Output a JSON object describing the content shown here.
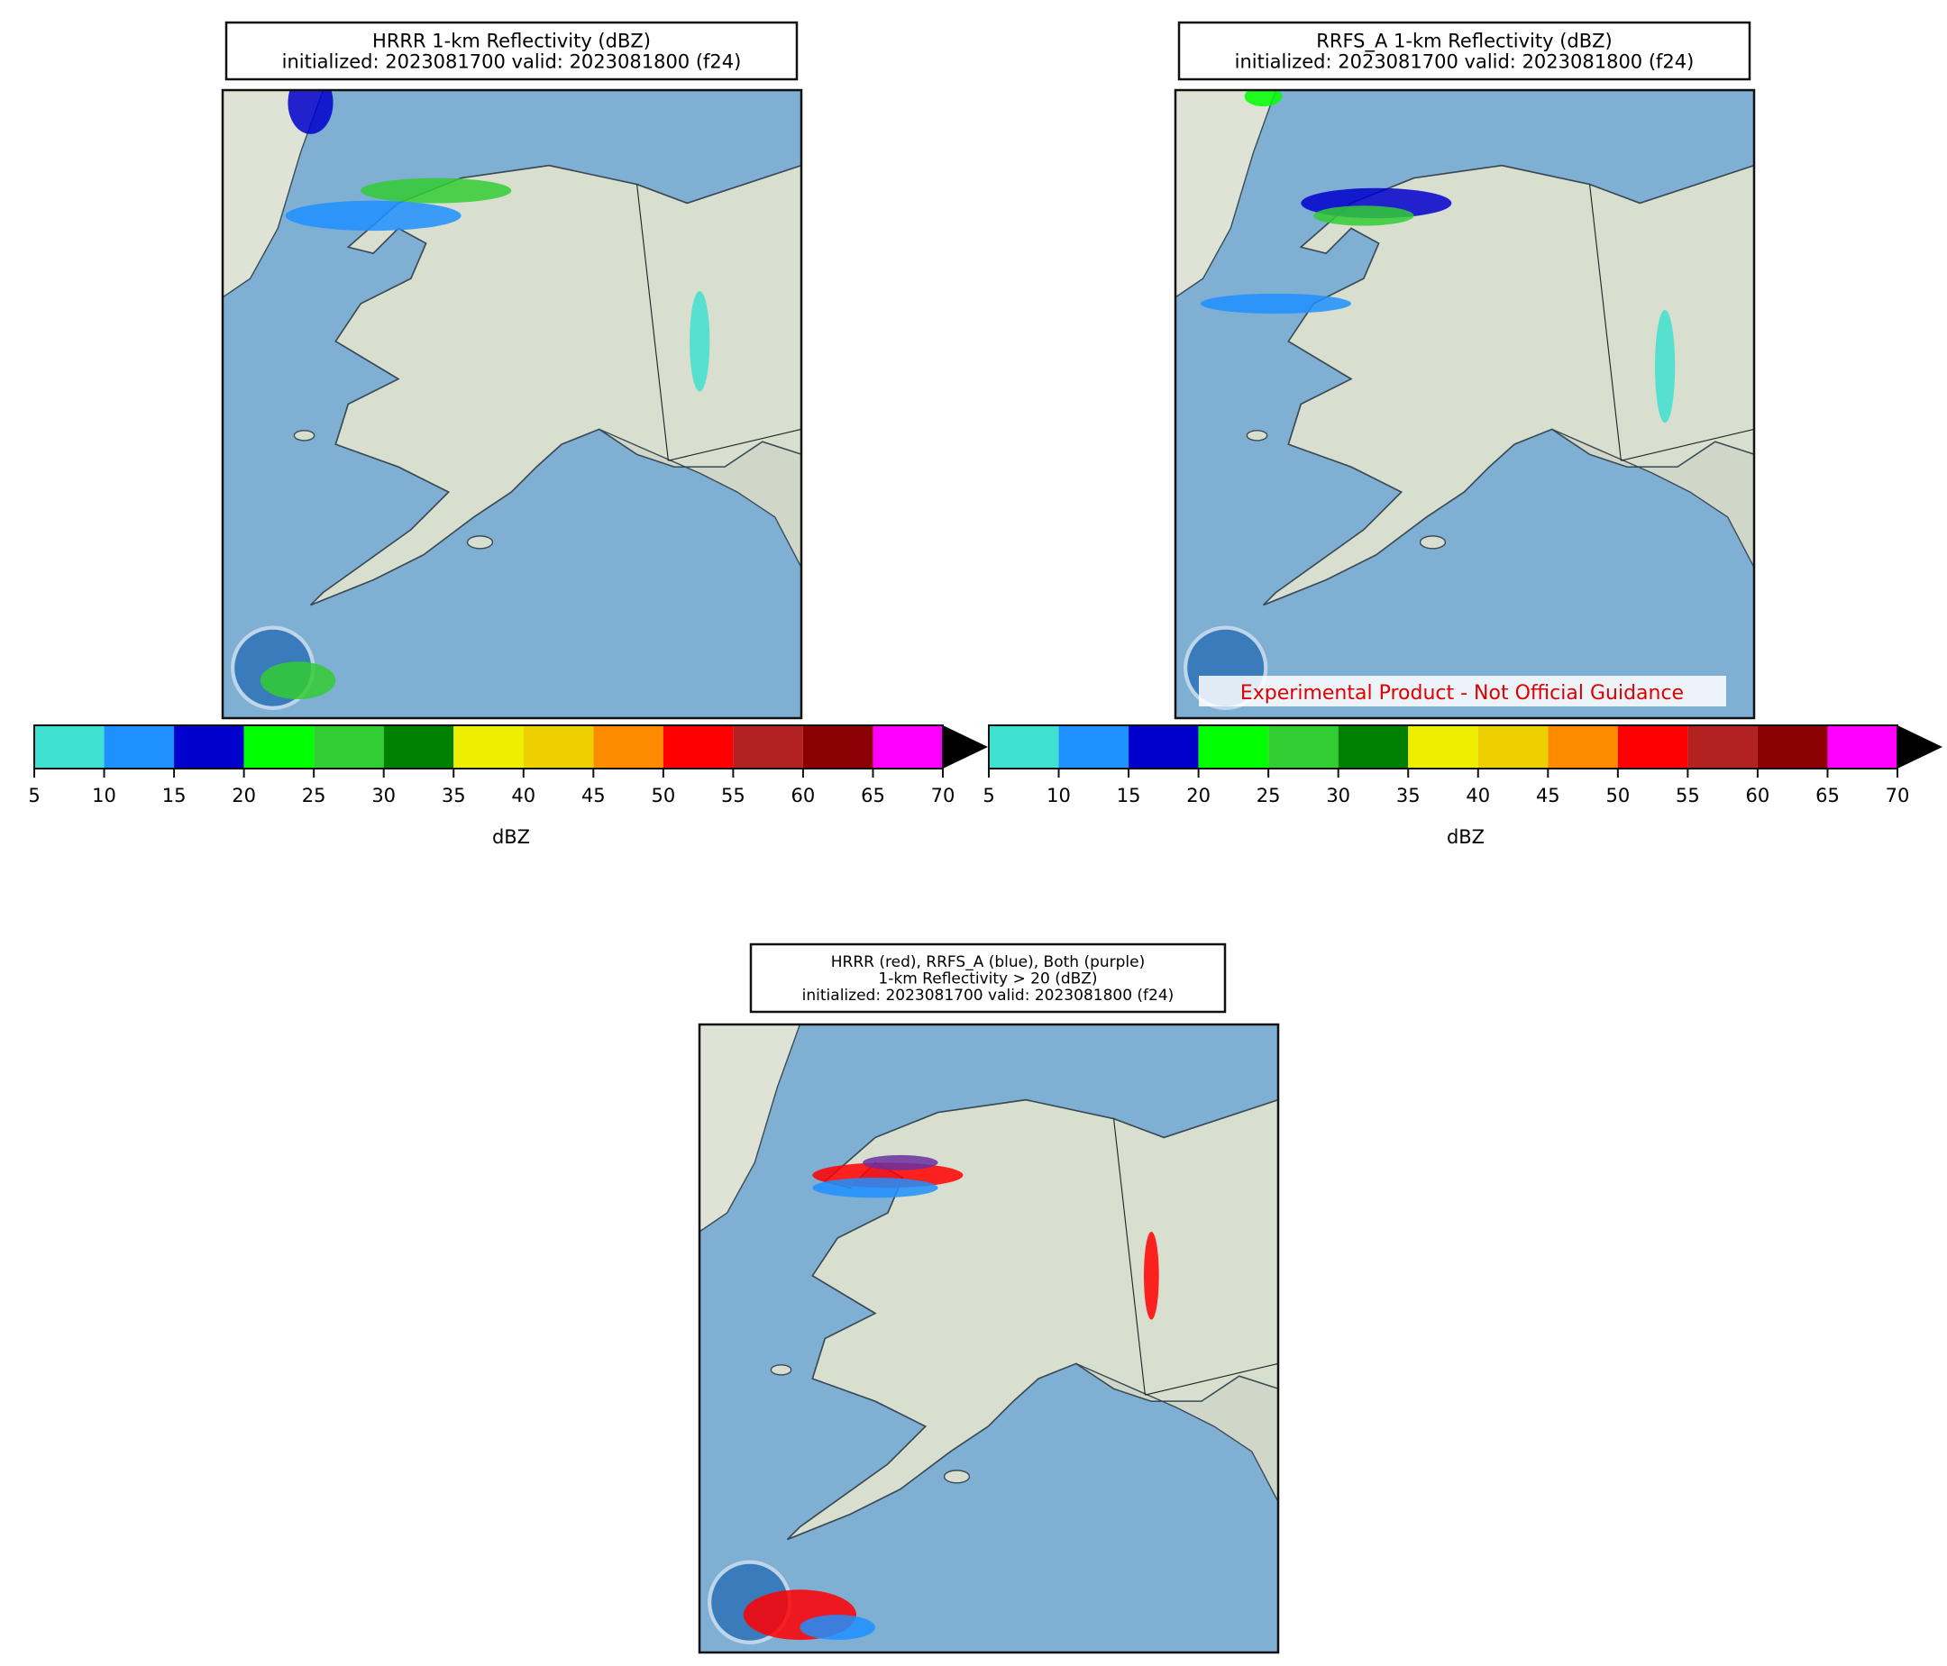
{
  "panels": [
    {
      "title_lines": [
        "HRRR 1-km Reflectivity (dBZ)",
        "initialized: 2023081700 valid: 2023081800 (f24)"
      ],
      "colorbar": true
    },
    {
      "title_lines": [
        "RRFS_A 1-km Reflectivity (dBZ)",
        "initialized: 2023081700 valid: 2023081800 (f24)"
      ],
      "colorbar": true,
      "watermark": "Experimental Product - Not Official Guidance"
    },
    {
      "title_lines": [
        "HRRR (red), RRFS_A (blue), Both (purple)",
        "1-km Reflectivity > 20 (dBZ)",
        "initialized: 2023081700 valid: 2023081800 (f24)"
      ],
      "colorbar": false
    }
  ],
  "colorbar": {
    "label": "dBZ",
    "ticks": [
      5,
      10,
      15,
      20,
      25,
      30,
      35,
      40,
      45,
      50,
      55,
      60,
      65,
      70
    ],
    "colors": [
      "#40e0d0",
      "#1e90ff",
      "#0000cd",
      "#00ff00",
      "#32cd32",
      "#008000",
      "#eeee00",
      "#eed000",
      "#ff8c00",
      "#ff0000",
      "#b22222",
      "#8b0000",
      "#ff00ff"
    ],
    "extend_color": "#000000"
  }
}
